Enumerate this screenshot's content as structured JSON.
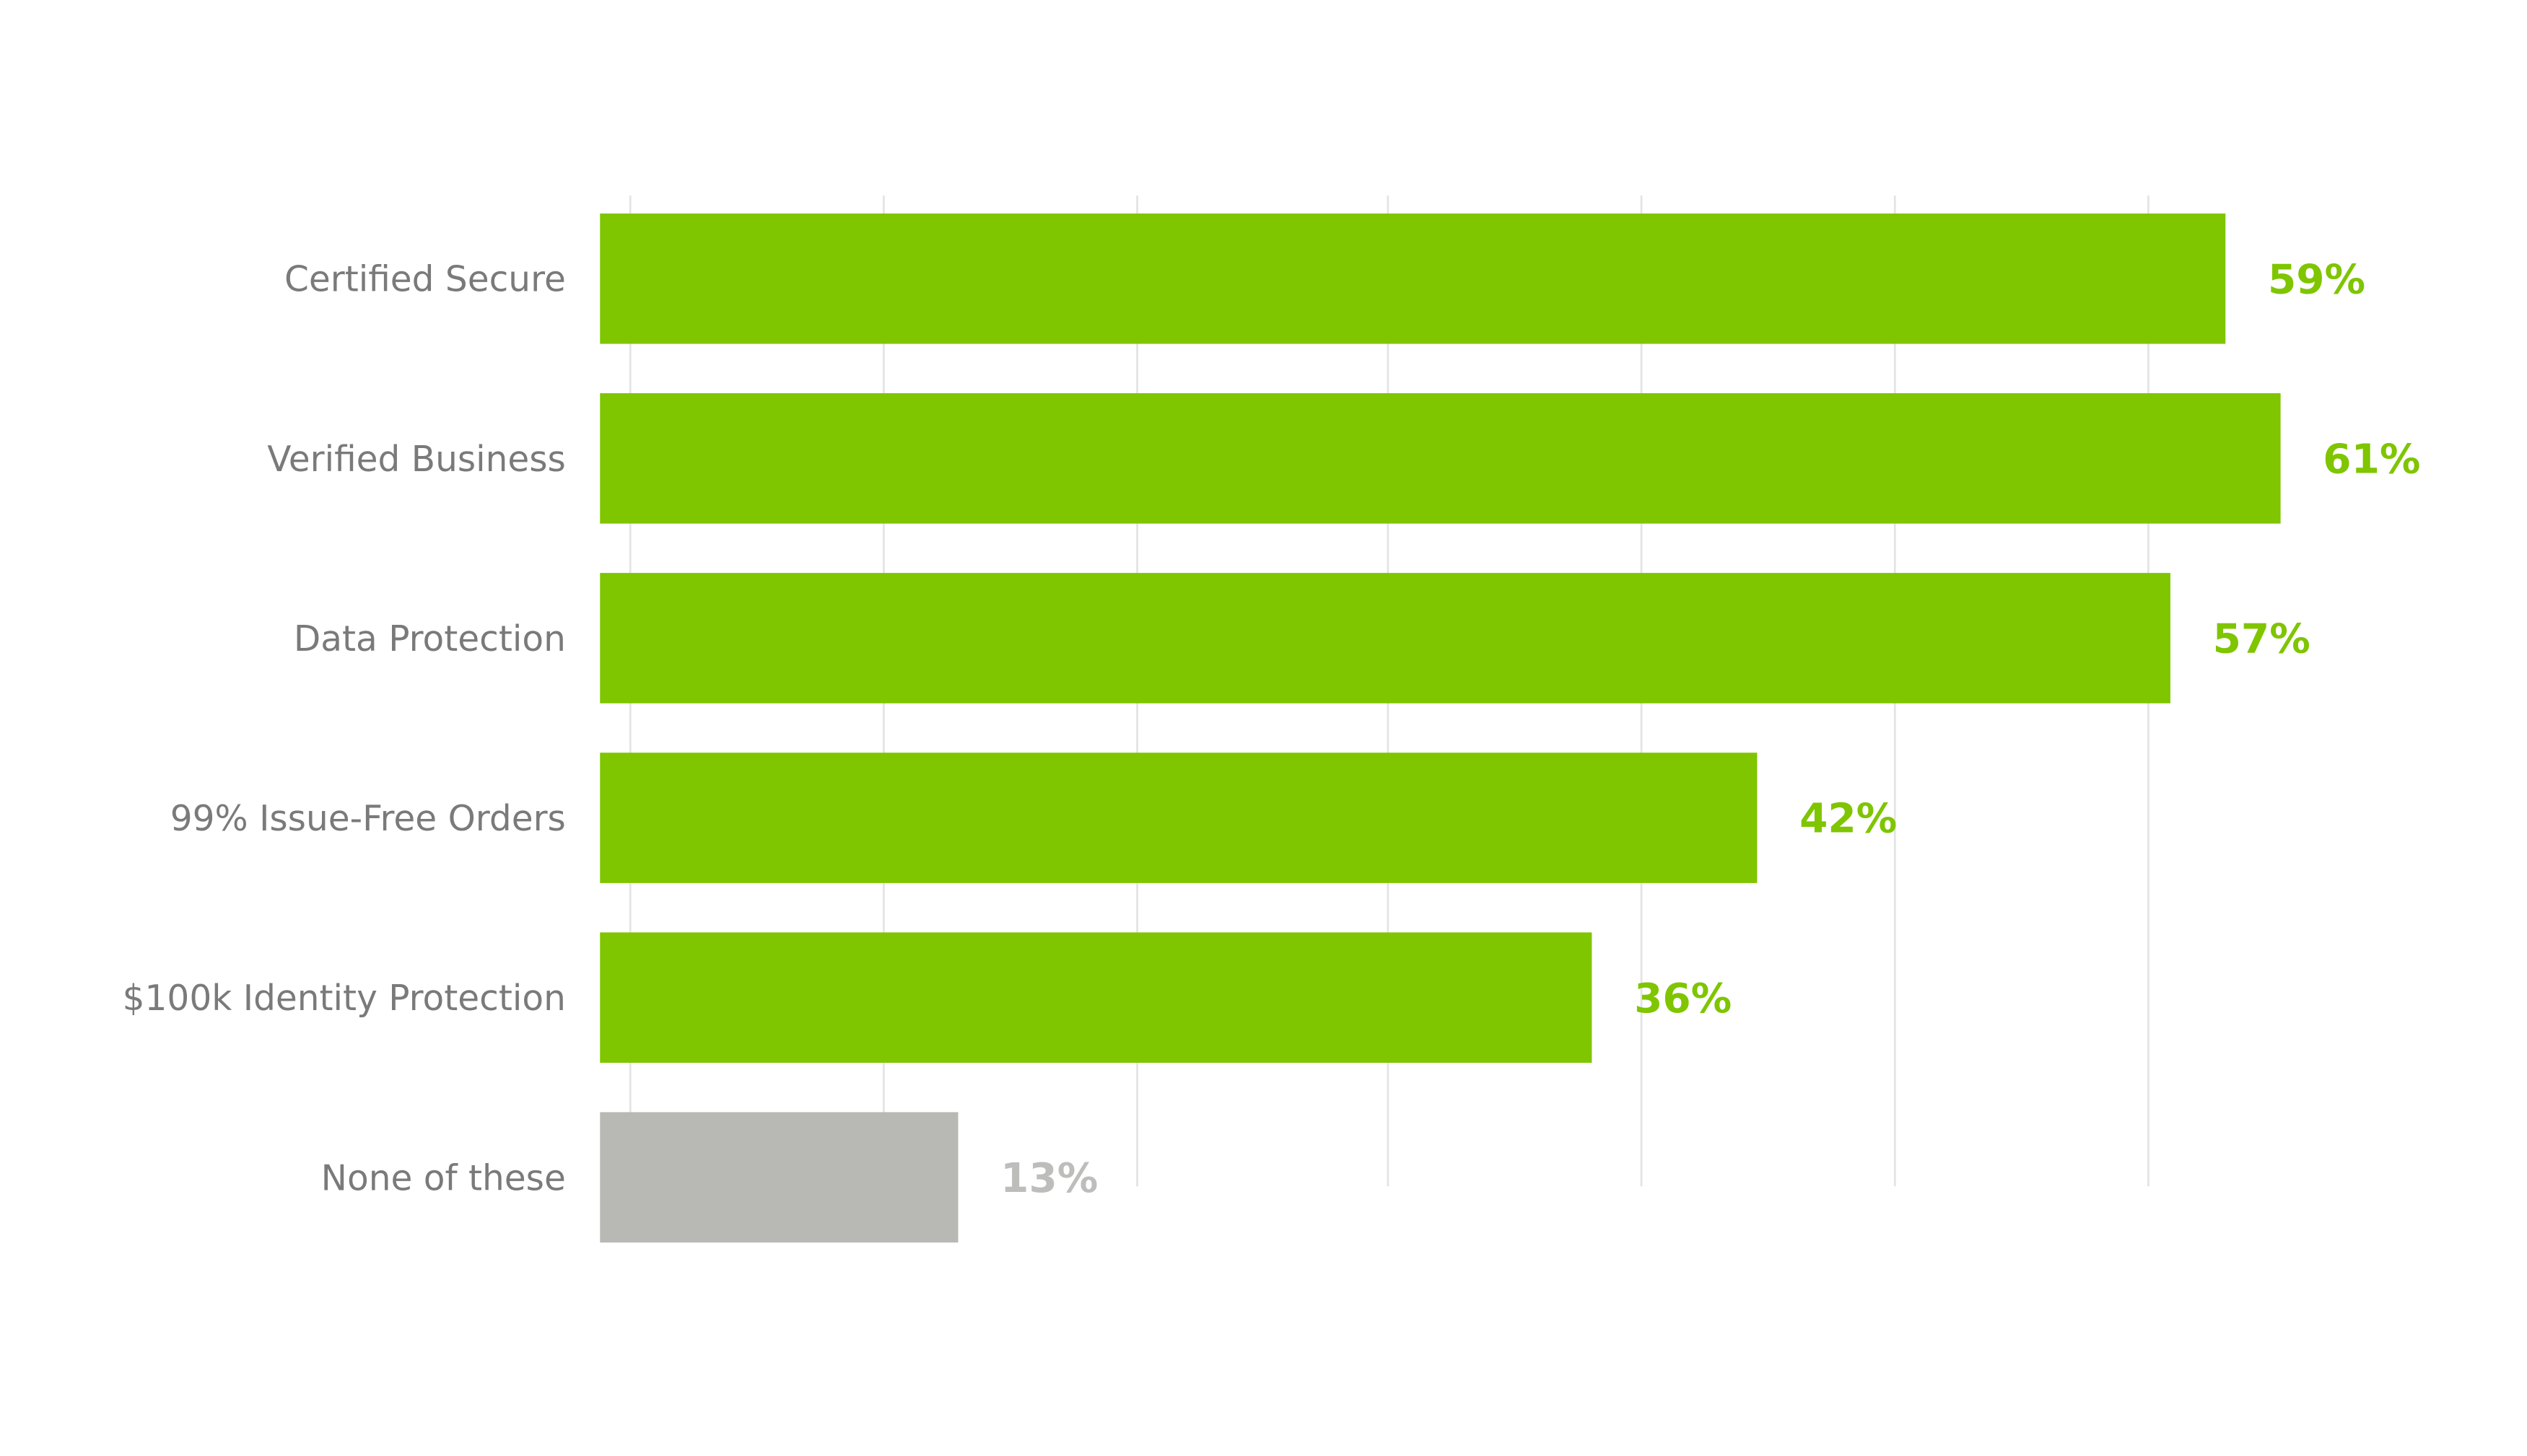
{
  "chart_data": {
    "type": "hbar",
    "categories": [
      "Certified Secure",
      "Verified Business",
      "Data Protection",
      "99% Issue-Free Orders",
      "$100k Identity Protection",
      "None of these"
    ],
    "values": [
      59,
      61,
      57,
      42,
      36,
      13
    ],
    "value_labels": [
      "59%",
      "61%",
      "57%",
      "42%",
      "36%",
      "13%"
    ],
    "colors": [
      "#7fc500",
      "#7fc500",
      "#7fc500",
      "#7fc500",
      "#7fc500",
      "#b8b8b4"
    ],
    "label_colors": [
      "#7fc500",
      "#7fc500",
      "#7fc500",
      "#7fc500",
      "#7fc500",
      "#bdbdbb"
    ],
    "xlim": [
      0,
      70
    ],
    "gridlines": [
      1.1,
      10.3,
      19.5,
      28.6,
      37.8,
      47.0,
      56.2
    ],
    "grid": true
  }
}
